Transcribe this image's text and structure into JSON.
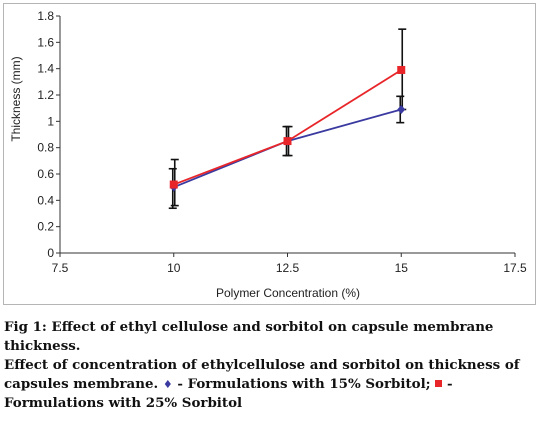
{
  "chart_data": {
    "type": "line",
    "xlabel": "Polymer Concentration (%)",
    "ylabel": "Thickness (mm)",
    "xlim": [
      7.5,
      17.5
    ],
    "ylim": [
      0,
      1.8
    ],
    "xticks": [
      "7.5",
      "10",
      "12.5",
      "15",
      "17.5"
    ],
    "yticks": [
      "0",
      "0.2",
      "0.4",
      "0.6",
      "0.8",
      "1",
      "1.2",
      "1.4",
      "1.6",
      "1.8"
    ],
    "x": [
      10,
      12.5,
      15
    ],
    "grid": false,
    "legend": "none",
    "series": [
      {
        "name": "Formulations with 15% Sorbitol",
        "marker": "diamond",
        "color": "#3a3aa0",
        "values": [
          0.5,
          0.85,
          1.09
        ],
        "err_low": [
          0.34,
          0.74,
          0.99
        ],
        "err_high": [
          0.64,
          0.96,
          1.19
        ]
      },
      {
        "name": "Formulations with 25% Sorbitol",
        "marker": "square",
        "color": "#e8262a",
        "values": [
          0.52,
          0.85,
          1.39
        ],
        "err_low": [
          0.36,
          0.74,
          1.09
        ],
        "err_high": [
          0.71,
          0.96,
          1.7
        ]
      }
    ]
  },
  "caption": {
    "fig_label": "Fig 1: Effect of ethyl cellulose and sorbitol on capsule membrane thickness.",
    "line2_prefix": "Effect of concentration of ethylcellulose and sorbitol on thickness of capsules membrane.",
    "diamond_glyph": "♦",
    "series1_text": " - Formulations with 15% Sorbitol;",
    "series2_text": " - Formulations with 25% Sorbitol"
  }
}
